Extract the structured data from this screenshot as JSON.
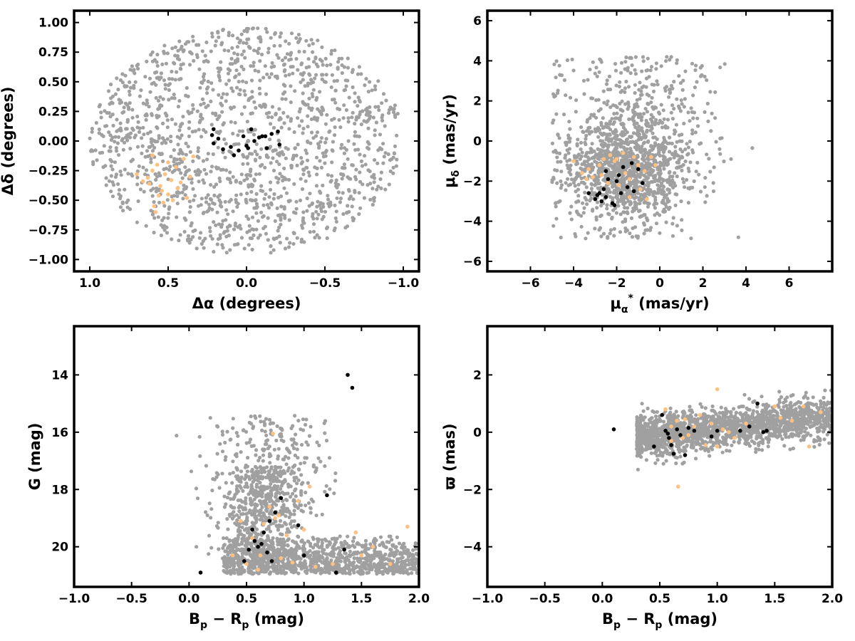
{
  "colors": {
    "field": "#a0a0a0",
    "orange": "#ffc080",
    "black": "#000000"
  },
  "labels": {
    "p1_x": "Δα (degrees)",
    "p1_y": "Δδ (degrees)",
    "p2_x_base": "μ",
    "p2_x_sub": "α",
    "p2_x_sup": "*",
    "p2_x_rest": "  (mas/yr)",
    "p2_y_base": "μ",
    "p2_y_sub": "δ",
    "p2_y_rest": " (mas/yr)",
    "p3_y": "G (mag)",
    "p4_y": "ϖ (mas)",
    "color_b": "B",
    "color_p": "p",
    "color_minus": " − R",
    "color_p2": "p",
    "color_rest": " (mag)"
  },
  "chart_data": [
    {
      "type": "scatter",
      "panel": "position",
      "xlabel": "Δα (degrees)",
      "ylabel": "Δδ (degrees)",
      "xlim": [
        1.1,
        -1.1
      ],
      "ylim": [
        -1.1,
        1.1
      ],
      "x_inverted": true,
      "xticks": [
        1.0,
        0.5,
        0.0,
        -0.5,
        -1.0
      ],
      "xtick_labels": [
        "1.0",
        "0.5",
        "0.0",
        "−0.5",
        "−1.0"
      ],
      "yticks": [
        1.0,
        0.75,
        0.5,
        0.25,
        0.0,
        -0.25,
        -0.5,
        -0.75,
        -1.0
      ],
      "ytick_labels": [
        "1.00",
        "0.75",
        "0.50",
        "0.25",
        "0.00",
        "−0.25",
        "−0.50",
        "−0.75",
        "−1.00"
      ],
      "field": {
        "shape": "disk",
        "radius": 1.0,
        "count": 1500
      },
      "black_points": [
        [
          0.22,
          0.05
        ],
        [
          0.21,
          -0.02
        ],
        [
          0.18,
          0.02
        ],
        [
          0.15,
          -0.07
        ],
        [
          0.1,
          -0.05
        ],
        [
          0.08,
          -0.12
        ],
        [
          0.05,
          -0.08
        ],
        [
          0.02,
          0.04
        ],
        [
          0.0,
          -0.04
        ],
        [
          -0.01,
          -0.06
        ],
        [
          -0.03,
          0.1
        ],
        [
          -0.05,
          0.0
        ],
        [
          -0.08,
          0.03
        ],
        [
          -0.1,
          0.04
        ],
        [
          -0.12,
          0.04
        ],
        [
          -0.13,
          -0.06
        ],
        [
          -0.16,
          0.06
        ],
        [
          -0.2,
          0.08
        ],
        [
          -0.21,
          -0.03
        ],
        [
          0.21,
          0.1
        ]
      ],
      "orange_points": [
        [
          0.7,
          -0.28
        ],
        [
          0.66,
          -0.34
        ],
        [
          0.63,
          -0.31
        ],
        [
          0.6,
          -0.25
        ],
        [
          0.59,
          -0.55
        ],
        [
          0.58,
          -0.6
        ],
        [
          0.57,
          -0.2
        ],
        [
          0.55,
          -0.38
        ],
        [
          0.54,
          -0.42
        ],
        [
          0.52,
          -0.28
        ],
        [
          0.5,
          -0.45
        ],
        [
          0.48,
          -0.33
        ],
        [
          0.47,
          -0.5
        ],
        [
          0.45,
          -0.22
        ],
        [
          0.44,
          -0.4
        ],
        [
          0.42,
          -0.35
        ],
        [
          0.4,
          -0.15
        ],
        [
          0.38,
          -0.48
        ],
        [
          0.36,
          -0.3
        ],
        [
          0.34,
          -0.13
        ],
        [
          0.6,
          -0.12
        ],
        [
          0.62,
          -0.36
        ],
        [
          0.56,
          -0.46
        ],
        [
          0.5,
          -0.18
        ],
        [
          0.53,
          -0.52
        ]
      ]
    },
    {
      "type": "scatter",
      "panel": "proper_motion",
      "xlabel": "μα* (mas/yr)",
      "ylabel": "μδ (mas/yr)",
      "xlim": [
        -8,
        8
      ],
      "ylim": [
        -6.5,
        6.5
      ],
      "xticks": [
        -6,
        -4,
        -2,
        0,
        2,
        4,
        6
      ],
      "xtick_labels": [
        "−6",
        "−4",
        "−2",
        "0",
        "2",
        "4",
        "6"
      ],
      "yticks": [
        -6,
        -4,
        -2,
        0,
        2,
        4,
        6
      ],
      "ytick_labels": [
        "−6",
        "−4",
        "−2",
        "0",
        "2",
        "4",
        "6"
      ],
      "field": {
        "shape": "blob",
        "center": [
          -1.5,
          -1.5
        ],
        "count": 1500
      },
      "black_points": [
        [
          -3.3,
          -2.6
        ],
        [
          -3.0,
          -2.9
        ],
        [
          -2.9,
          -2.7
        ],
        [
          -2.7,
          -3.0
        ],
        [
          -2.6,
          -2.4
        ],
        [
          -2.5,
          -2.8
        ],
        [
          -2.5,
          -1.5
        ],
        [
          -2.4,
          -1.9
        ],
        [
          -2.2,
          -3.1
        ],
        [
          -2.1,
          -3.2
        ],
        [
          -2.0,
          -2.0
        ],
        [
          -1.8,
          -2.6
        ],
        [
          -1.7,
          -1.3
        ],
        [
          -1.5,
          -2.3
        ],
        [
          -1.3,
          -1.1
        ],
        [
          -1.2,
          -2.5
        ],
        [
          -1.0,
          -1.4
        ],
        [
          -0.8,
          -2.1
        ],
        [
          -2.8,
          -2.6
        ],
        [
          -1.9,
          -1.7
        ]
      ],
      "orange_points": [
        [
          -3.6,
          -1.6
        ],
        [
          -3.3,
          -1.4
        ],
        [
          -3.1,
          -1.8
        ],
        [
          -2.8,
          -1.2
        ],
        [
          -2.6,
          -0.9
        ],
        [
          -2.4,
          -2.1
        ],
        [
          -2.3,
          -0.7
        ],
        [
          -2.1,
          -1.0
        ],
        [
          -1.9,
          -2.2
        ],
        [
          -1.7,
          -0.6
        ],
        [
          -1.6,
          -1.6
        ],
        [
          -1.4,
          -1.9
        ],
        [
          -1.2,
          -0.8
        ],
        [
          -1.0,
          -1.2
        ],
        [
          -0.9,
          -2.4
        ],
        [
          -0.7,
          -1.5
        ],
        [
          -0.4,
          -0.8
        ],
        [
          -0.2,
          -1.2
        ],
        [
          -3.4,
          -1.9
        ],
        [
          -2.0,
          -0.9
        ],
        [
          -1.4,
          -2.8
        ],
        [
          -0.6,
          -2.9
        ],
        [
          -4.0,
          -1.0
        ],
        [
          -2.7,
          -1.7
        ]
      ]
    },
    {
      "type": "scatter",
      "panel": "cmd",
      "xlabel": "Bp − Rp (mag)",
      "ylabel": "G (mag)",
      "xlim": [
        -1.0,
        2.0
      ],
      "ylim": [
        21.4,
        12.3
      ],
      "y_inverted": true,
      "xticks": [
        -1.0,
        -0.5,
        0.0,
        0.5,
        1.0,
        1.5,
        2.0
      ],
      "xtick_labels": [
        "−1.0",
        "−0.5",
        "0.0",
        "0.5",
        "1.0",
        "1.5",
        "2.0"
      ],
      "yticks": [
        20,
        18,
        16,
        14
      ],
      "ytick_labels": [
        "20",
        "18",
        "16",
        "14"
      ],
      "field": {
        "shape": "cmd",
        "count": 1900
      },
      "black_points": [
        [
          0.1,
          20.9
        ],
        [
          0.48,
          20.5
        ],
        [
          0.52,
          20.1
        ],
        [
          0.55,
          19.4
        ],
        [
          0.57,
          19.8
        ],
        [
          0.6,
          20.0
        ],
        [
          0.63,
          19.9
        ],
        [
          0.65,
          19.5
        ],
        [
          0.68,
          20.2
        ],
        [
          0.7,
          19.1
        ],
        [
          0.72,
          20.5
        ],
        [
          0.75,
          18.8
        ],
        [
          0.8,
          18.3
        ],
        [
          0.95,
          19.25
        ],
        [
          1.0,
          20.3
        ],
        [
          1.2,
          18.2
        ],
        [
          1.28,
          20.9
        ],
        [
          1.35,
          20.1
        ],
        [
          1.38,
          14.0
        ],
        [
          1.42,
          14.45
        ]
      ],
      "orange_points": [
        [
          0.38,
          20.3
        ],
        [
          0.45,
          19.1
        ],
        [
          0.5,
          20.6
        ],
        [
          0.55,
          19.7
        ],
        [
          0.6,
          20.8
        ],
        [
          0.65,
          19.2
        ],
        [
          0.7,
          18.6
        ],
        [
          0.73,
          16.05
        ],
        [
          0.75,
          19.0
        ],
        [
          0.8,
          20.4
        ],
        [
          0.85,
          19.6
        ],
        [
          0.9,
          20.55
        ],
        [
          0.95,
          18.4
        ],
        [
          1.0,
          19.4
        ],
        [
          1.05,
          17.9
        ],
        [
          1.1,
          20.7
        ],
        [
          1.25,
          20.6
        ],
        [
          1.45,
          19.5
        ],
        [
          1.5,
          20.3
        ],
        [
          1.6,
          20.0
        ],
        [
          1.75,
          20.6
        ],
        [
          1.9,
          19.3
        ],
        [
          0.62,
          20.3
        ],
        [
          0.78,
          18.9
        ]
      ]
    },
    {
      "type": "scatter",
      "panel": "parallax",
      "xlabel": "Bp − Rp (mag)",
      "ylabel": "ϖ (mas)",
      "xlim": [
        -1.0,
        2.0
      ],
      "ylim": [
        -5.4,
        3.7
      ],
      "xticks": [
        -1.0,
        -0.5,
        0.0,
        0.5,
        1.0,
        1.5,
        2.0
      ],
      "xtick_labels": [
        "−1.0",
        "−0.5",
        "0.0",
        "0.5",
        "1.0",
        "1.5",
        "2.0"
      ],
      "yticks": [
        2,
        0,
        -2,
        -4
      ],
      "ytick_labels": [
        "2",
        "0",
        "−2",
        "−4"
      ],
      "field": {
        "shape": "band",
        "count": 1900
      },
      "black_points": [
        [
          0.1,
          0.1
        ],
        [
          0.45,
          -0.5
        ],
        [
          0.52,
          0.6
        ],
        [
          0.55,
          0.05
        ],
        [
          0.58,
          -0.2
        ],
        [
          0.6,
          -0.45
        ],
        [
          0.62,
          -0.75
        ],
        [
          0.65,
          0.1
        ],
        [
          0.68,
          -0.1
        ],
        [
          0.72,
          -0.8
        ],
        [
          0.75,
          0.15
        ],
        [
          0.8,
          0.05
        ],
        [
          0.95,
          -0.15
        ],
        [
          1.0,
          0.05
        ],
        [
          1.2,
          0.05
        ],
        [
          1.28,
          0.2
        ],
        [
          1.35,
          1.0
        ],
        [
          1.4,
          0.0
        ],
        [
          1.43,
          0.05
        ],
        [
          0.57,
          -0.05
        ]
      ],
      "orange_points": [
        [
          0.55,
          0.8
        ],
        [
          0.6,
          -0.3
        ],
        [
          0.65,
          0.4
        ],
        [
          0.7,
          -0.2
        ],
        [
          0.72,
          0.45
        ],
        [
          0.75,
          -0.1
        ],
        [
          0.8,
          0.2
        ],
        [
          0.9,
          -0.45
        ],
        [
          0.95,
          0.3
        ],
        [
          1.0,
          -0.5
        ],
        [
          1.05,
          0.1
        ],
        [
          1.1,
          0.0
        ],
        [
          1.15,
          -0.2
        ],
        [
          1.25,
          0.3
        ],
        [
          1.5,
          0.9
        ],
        [
          1.55,
          0.5
        ],
        [
          1.65,
          0.4
        ],
        [
          1.75,
          0.9
        ],
        [
          1.8,
          -0.5
        ],
        [
          1.9,
          0.7
        ],
        [
          1.0,
          1.5
        ],
        [
          0.66,
          -1.9
        ],
        [
          0.85,
          0.6
        ],
        [
          0.6,
          0.2
        ]
      ]
    }
  ]
}
